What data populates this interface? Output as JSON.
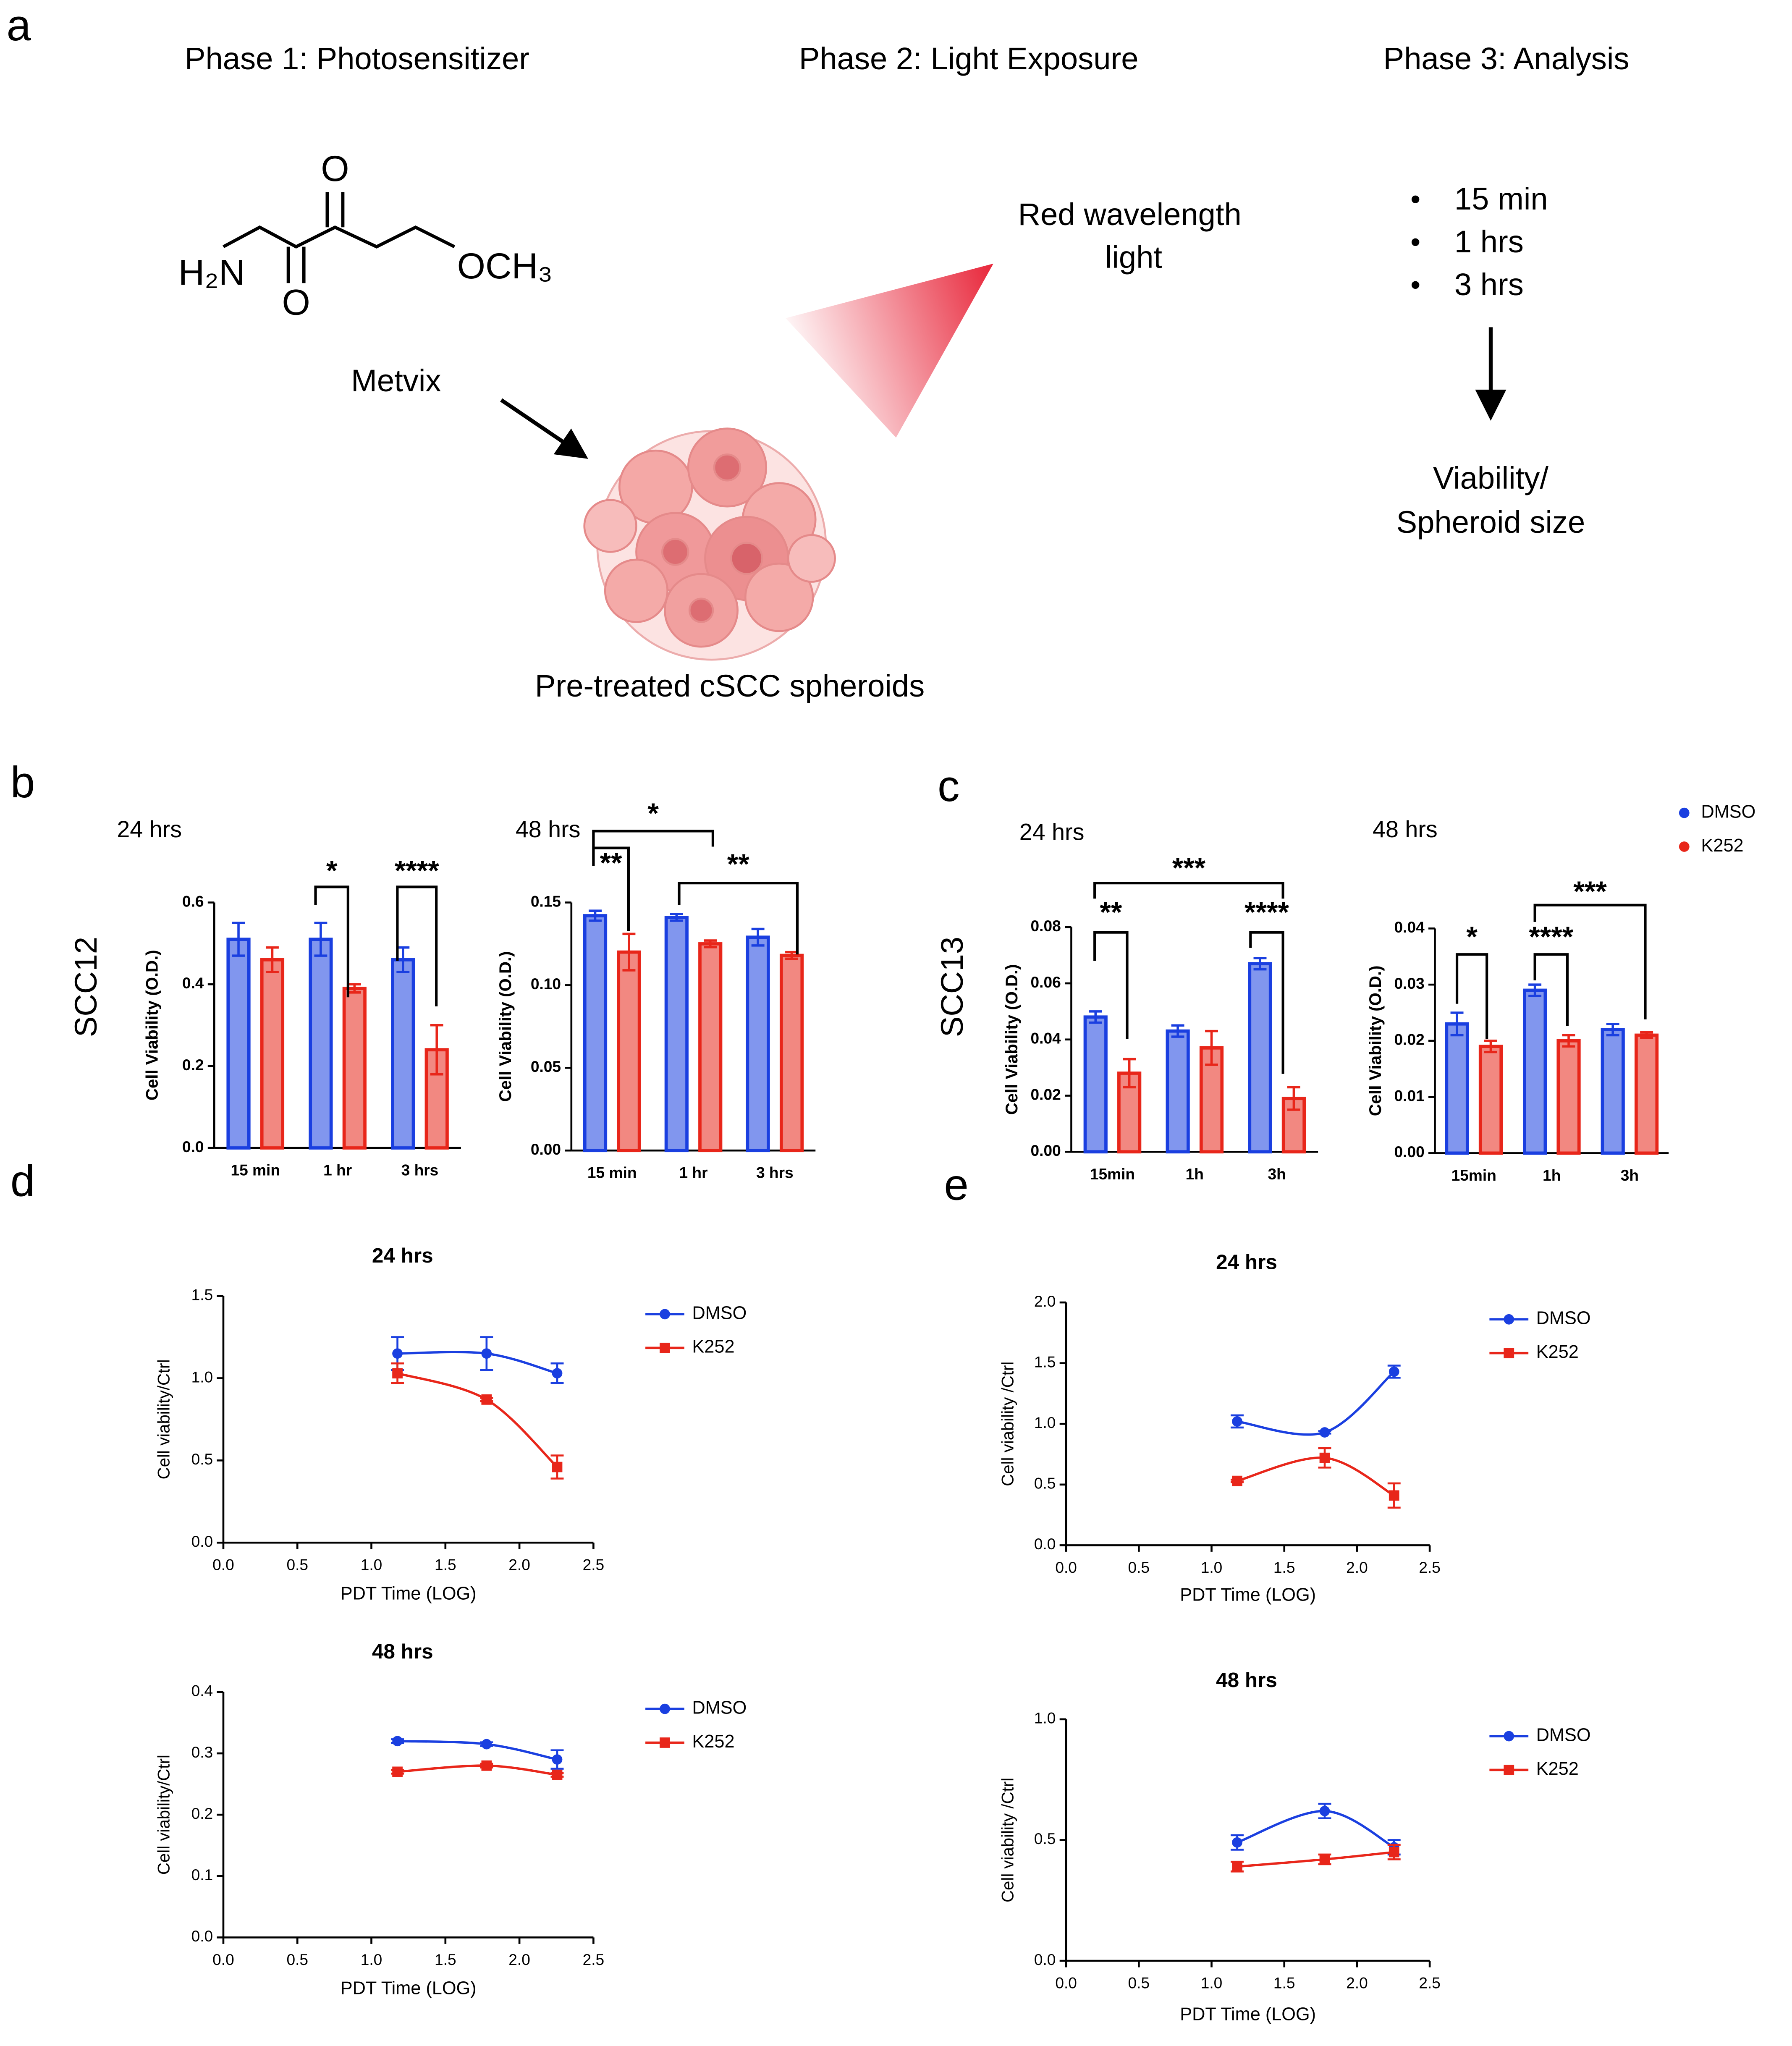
{
  "panel_a": {
    "label": "a",
    "phases": [
      "Phase 1: Photosensitizer",
      "Phase 2: Light Exposure",
      "Phase 3: Analysis"
    ],
    "structure": {
      "o_top": "O",
      "o_bottom": "O",
      "amine": "H₂N",
      "methoxy": "OCH₃"
    },
    "drug": "Metvix",
    "light": [
      "Red wavelength",
      "light"
    ],
    "bullet": "•",
    "timepoints": [
      "15 min",
      "1 hrs",
      "3 hrs"
    ],
    "readout": [
      "Viability/",
      "Spheroid size"
    ],
    "spheroids": "Pre-treated cSCC spheroids"
  },
  "panel_labels": [
    "b",
    "c",
    "d",
    "e"
  ],
  "row_labels": [
    "SCC12",
    "SCC13"
  ],
  "chart_data": [
    {
      "type": "bar",
      "title": "24 hrs",
      "ylabel": "Cell Viability (O.D.)",
      "categories": [
        "15 min",
        "1 hr",
        "3 hrs"
      ],
      "series": [
        {
          "name": "DMSO",
          "color": "#1a3fe0",
          "values": [
            0.51,
            0.51,
            0.46
          ],
          "errors": [
            0.04,
            0.04,
            0.03
          ]
        },
        {
          "name": "K252",
          "color": "#e8261a",
          "values": [
            0.46,
            0.39,
            0.24
          ],
          "errors": [
            0.03,
            0.01,
            0.06
          ]
        }
      ],
      "ylim": [
        0,
        0.6
      ],
      "yticks": [
        {
          "value": 0,
          "label": "0.0"
        },
        0.2,
        0.4,
        0.6
      ],
      "annotations": [
        "*",
        "****"
      ]
    },
    {
      "type": "bar",
      "title": "48 hrs",
      "ylabel": "Cell Viability (O.D.)",
      "categories": [
        "15 min",
        "1 hr",
        "3 hrs"
      ],
      "series": [
        {
          "name": "DMSO",
          "color": "#1a3fe0",
          "values": [
            0.142,
            0.141,
            0.129
          ],
          "errors": [
            0.003,
            0.002,
            0.005
          ]
        },
        {
          "name": "K252",
          "color": "#e8261a",
          "values": [
            0.12,
            0.125,
            0.118
          ],
          "errors": [
            0.011,
            0.002,
            0.002
          ]
        }
      ],
      "ylim": [
        0,
        0.15
      ],
      "yticks": [
        {
          "value": 0,
          "label": "0.00"
        },
        0.05,
        {
          "value": 0.1,
          "label": "0.10"
        },
        0.15
      ],
      "annotations": [
        "*",
        "**",
        "**"
      ]
    },
    {
      "type": "bar",
      "title": "24 hrs",
      "ylabel": "Cell Viability (O.D.)",
      "categories": [
        "15min",
        "1h",
        "3h"
      ],
      "series": [
        {
          "name": "DMSO",
          "color": "#1a3fe0",
          "values": [
            0.048,
            0.043,
            0.067
          ],
          "errors": [
            0.002,
            0.002,
            0.002
          ]
        },
        {
          "name": "K252",
          "color": "#e8261a",
          "values": [
            0.028,
            0.037,
            0.019
          ],
          "errors": [
            0.005,
            0.006,
            0.004
          ]
        }
      ],
      "ylim": [
        0,
        0.08
      ],
      "yticks": [
        {
          "value": 0,
          "label": "0.00"
        },
        0.02,
        0.04,
        0.06,
        0.08
      ],
      "annotations": [
        "***",
        "**",
        "****"
      ]
    },
    {
      "type": "bar",
      "title": "48 hrs",
      "ylabel": "Cell Viability (O.D.)",
      "categories": [
        "15min",
        "1h",
        "3h"
      ],
      "series": [
        {
          "name": "DMSO",
          "color": "#1a3fe0",
          "values": [
            0.023,
            0.029,
            0.022
          ],
          "errors": [
            0.002,
            0.001,
            0.001
          ]
        },
        {
          "name": "K252",
          "color": "#e8261a",
          "values": [
            0.019,
            0.02,
            0.021
          ],
          "errors": [
            0.001,
            0.001,
            0.0005
          ]
        }
      ],
      "ylim": [
        0,
        0.04
      ],
      "yticks": [
        {
          "value": 0,
          "label": "0.00"
        },
        0.01,
        0.02,
        0.03,
        0.04
      ],
      "annotations": [
        "*",
        "****",
        "***"
      ]
    },
    {
      "type": "line",
      "title": "24 hrs",
      "xlabel": "PDT Time (LOG)",
      "ylabel": "Cell viability/Ctrl",
      "x": [
        1.176,
        1.778,
        2.255
      ],
      "series": [
        {
          "name": "DMSO",
          "color": "#1a3fe0",
          "marker": "circle",
          "values": [
            1.15,
            1.15,
            1.03
          ],
          "errors": [
            0.1,
            0.1,
            0.06
          ]
        },
        {
          "name": "K252",
          "color": "#e8261a",
          "marker": "square",
          "values": [
            1.03,
            0.87,
            0.46
          ],
          "errors": [
            0.06,
            0.01,
            0.07
          ]
        }
      ],
      "xlim": [
        0,
        2.5
      ],
      "xticks": [
        {
          "value": 0,
          "label": "0.0"
        },
        0.5,
        {
          "value": 1,
          "label": "1.0"
        },
        1.5,
        {
          "value": 2,
          "label": "2.0"
        },
        2.5
      ],
      "ylim": [
        0,
        1.5
      ],
      "yticks": [
        {
          "value": 0,
          "label": "0.0"
        },
        0.5,
        {
          "value": 1,
          "label": "1.0"
        },
        1.5
      ]
    },
    {
      "type": "line",
      "title": "48 hrs",
      "xlabel": "PDT Time (LOG)",
      "ylabel": "Cell viability/Ctrl",
      "x": [
        1.176,
        1.778,
        2.255
      ],
      "series": [
        {
          "name": "DMSO",
          "color": "#1a3fe0",
          "marker": "circle",
          "values": [
            0.32,
            0.315,
            0.29
          ],
          "errors": [
            0.003,
            0.003,
            0.015
          ]
        },
        {
          "name": "K252",
          "color": "#e8261a",
          "marker": "square",
          "values": [
            0.27,
            0.28,
            0.265
          ],
          "errors": [
            0.003,
            0.003,
            0.003
          ]
        }
      ],
      "xlim": [
        0,
        2.5
      ],
      "xticks": [
        {
          "value": 0,
          "label": "0.0"
        },
        0.5,
        {
          "value": 1,
          "label": "1.0"
        },
        1.5,
        {
          "value": 2,
          "label": "2.0"
        },
        2.5
      ],
      "ylim": [
        0,
        0.4
      ],
      "yticks": [
        {
          "value": 0,
          "label": "0.0"
        },
        0.1,
        0.2,
        0.3,
        0.4
      ]
    },
    {
      "type": "line",
      "title": "24 hrs",
      "xlabel": "PDT Time (LOG)",
      "ylabel": "Cell viability /Ctrl",
      "x": [
        1.176,
        1.778,
        2.255
      ],
      "series": [
        {
          "name": "DMSO",
          "color": "#1a3fe0",
          "marker": "circle",
          "values": [
            1.02,
            0.93,
            1.43
          ],
          "errors": [
            0.05,
            0.01,
            0.05
          ]
        },
        {
          "name": "K252",
          "color": "#e8261a",
          "marker": "square",
          "values": [
            0.53,
            0.72,
            0.41
          ],
          "errors": [
            0.01,
            0.08,
            0.1
          ]
        }
      ],
      "xlim": [
        0,
        2.5
      ],
      "xticks": [
        {
          "value": 0,
          "label": "0.0"
        },
        0.5,
        {
          "value": 1,
          "label": "1.0"
        },
        1.5,
        {
          "value": 2,
          "label": "2.0"
        },
        2.5
      ],
      "ylim": [
        0,
        2
      ],
      "yticks": [
        {
          "value": 0,
          "label": "0.0"
        },
        0.5,
        {
          "value": 1,
          "label": "1.0"
        },
        1.5,
        {
          "value": 2,
          "label": "2.0"
        }
      ]
    },
    {
      "type": "line",
      "title": "48 hrs",
      "xlabel": "PDT Time (LOG)",
      "ylabel": "Cell viability /Ctrl",
      "x": [
        1.176,
        1.778,
        2.255
      ],
      "series": [
        {
          "name": "DMSO",
          "color": "#1a3fe0",
          "marker": "circle",
          "values": [
            0.49,
            0.62,
            0.47
          ],
          "errors": [
            0.03,
            0.03,
            0.03
          ]
        },
        {
          "name": "K252",
          "color": "#e8261a",
          "marker": "square",
          "values": [
            0.39,
            0.42,
            0.45
          ],
          "errors": [
            0.02,
            0.02,
            0.03
          ]
        }
      ],
      "xlim": [
        0,
        2.5
      ],
      "xticks": [
        {
          "value": 0,
          "label": "0.0"
        },
        0.5,
        {
          "value": 1,
          "label": "1.0"
        },
        1.5,
        {
          "value": 2,
          "label": "2.0"
        },
        2.5
      ],
      "ylim": [
        0,
        1
      ],
      "yticks": [
        {
          "value": 0,
          "label": "0.0"
        },
        0.5,
        {
          "value": 1,
          "label": "1.0"
        }
      ]
    }
  ]
}
